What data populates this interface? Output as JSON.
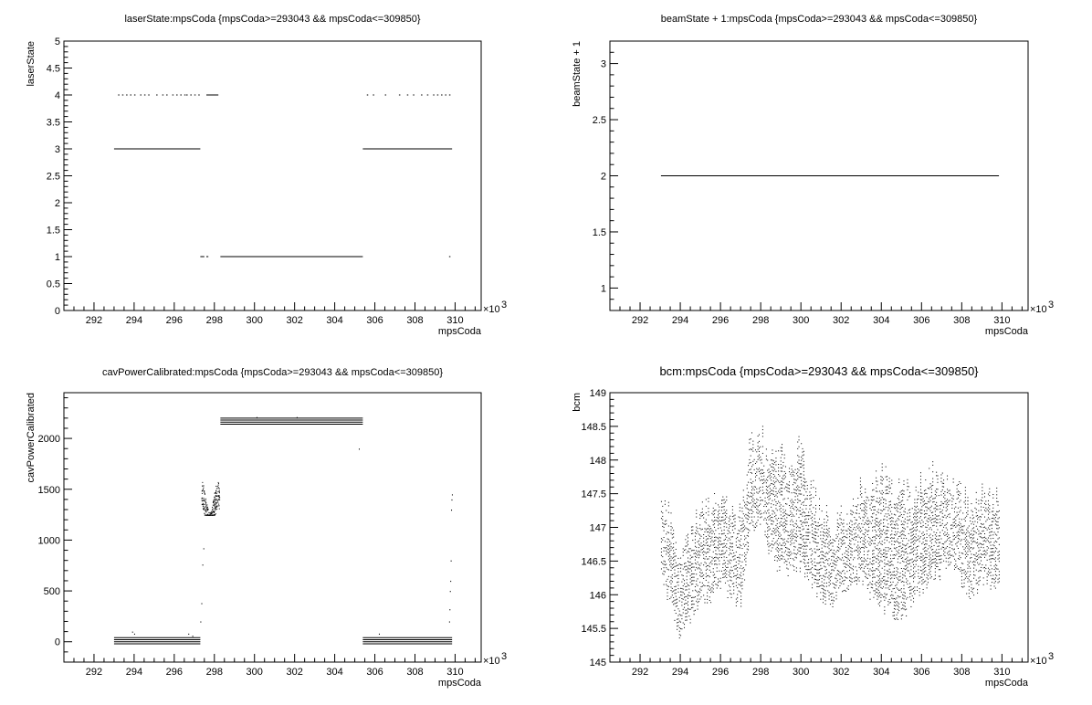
{
  "chart_data": [
    {
      "type": "scatter",
      "title": "laserState:mpsCoda {mpsCoda>=293043 && mpsCoda<=309850}",
      "xlabel": "mpsCoda",
      "ylabel": "laserState",
      "x_exponent": "×10",
      "x_exponent_power": "3",
      "xlim": [
        290.5,
        311.3
      ],
      "ylim": [
        0,
        5
      ],
      "x_ticks": [
        "292",
        "294",
        "296",
        "298",
        "300",
        "302",
        "304",
        "306",
        "308",
        "310"
      ],
      "y_ticks": [
        "0",
        "0.5",
        "1",
        "1.5",
        "2",
        "2.5",
        "3",
        "3.5",
        "4",
        "4.5",
        "5"
      ],
      "segments": [
        {
          "x": [
            293.0,
            297.3
          ],
          "y": 3
        },
        {
          "x": [
            298.3,
            305.4
          ],
          "y": 1
        },
        {
          "x": [
            305.4,
            309.85
          ],
          "y": 3
        },
        {
          "x": [
            297.6,
            298.2
          ],
          "y": 4
        },
        {
          "x": [
            297.3,
            297.5
          ],
          "y": 1
        },
        {
          "x": [
            297.6,
            297.7
          ],
          "y": 1
        }
      ],
      "dots_y4": [
        293.2,
        293.4,
        293.6,
        293.8,
        294.0,
        294.3,
        294.5,
        294.7,
        295.1,
        295.4,
        295.6,
        295.9,
        296.1,
        296.3,
        296.5,
        296.6,
        296.8,
        297.0,
        297.2,
        305.6,
        305.9,
        306.5,
        307.2,
        307.6,
        307.9,
        308.3,
        308.6,
        308.9,
        309.1,
        309.3,
        309.5,
        309.7
      ],
      "dots_y1": [
        309.7
      ]
    },
    {
      "type": "scatter",
      "title": "beamState + 1:mpsCoda {mpsCoda>=293043 && mpsCoda<=309850}",
      "xlabel": "mpsCoda",
      "ylabel": "beamState + 1",
      "x_exponent": "×10",
      "x_exponent_power": "3",
      "xlim": [
        290.5,
        311.3
      ],
      "ylim": [
        0.8,
        3.2
      ],
      "x_ticks": [
        "292",
        "294",
        "296",
        "298",
        "300",
        "302",
        "304",
        "306",
        "308",
        "310"
      ],
      "y_ticks": [
        "1",
        "1.5",
        "2",
        "2.5",
        "3"
      ],
      "y_tick_values": [
        1,
        1.5,
        2,
        2.5,
        3
      ],
      "segments": [
        {
          "x": [
            293.04,
            309.85
          ],
          "y": 2
        }
      ]
    },
    {
      "type": "scatter",
      "title": "cavPowerCalibrated:mpsCoda {mpsCoda>=293043 && mpsCoda<=309850}",
      "xlabel": "mpsCoda",
      "ylabel": "cavPowerCalibrated",
      "x_exponent": "×10",
      "x_exponent_power": "3",
      "xlim": [
        290.5,
        311.3
      ],
      "ylim": [
        -200,
        2450
      ],
      "x_ticks": [
        "292",
        "294",
        "296",
        "298",
        "300",
        "302",
        "304",
        "306",
        "308",
        "310"
      ],
      "y_ticks": [
        "0",
        "500",
        "1000",
        "1500",
        "2000"
      ],
      "y_tick_values": [
        0,
        500,
        1000,
        1500,
        2000
      ],
      "bands": [
        {
          "x": [
            293.0,
            297.3
          ],
          "ys": [
            40,
            20,
            0,
            -20
          ]
        },
        {
          "x": [
            298.3,
            305.4
          ],
          "ys": [
            2200,
            2180,
            2160,
            2140
          ]
        },
        {
          "x": [
            305.4,
            309.85
          ],
          "ys": [
            40,
            20,
            0,
            -20
          ]
        }
      ],
      "cluster": {
        "x": [
          297.35,
          298.25
        ],
        "y": [
          1250,
          1680
        ]
      },
      "rise": [
        {
          "x": 297.3,
          "y": 200
        },
        {
          "x": 297.35,
          "y": 380
        },
        {
          "x": 297.4,
          "y": 760
        },
        {
          "x": 297.45,
          "y": 920
        }
      ],
      "isolated": [
        {
          "x": 293.9,
          "y": 100
        },
        {
          "x": 294.0,
          "y": 80
        },
        {
          "x": 296.7,
          "y": 80
        },
        {
          "x": 296.9,
          "y": 60
        },
        {
          "x": 305.2,
          "y": 1900
        },
        {
          "x": 306.2,
          "y": 80
        },
        {
          "x": 302.1,
          "y": 2210
        },
        {
          "x": 300.1,
          "y": 2210
        }
      ],
      "tail": [
        {
          "x": 309.7,
          "y": 200
        },
        {
          "x": 309.72,
          "y": 320
        },
        {
          "x": 309.74,
          "y": 500
        },
        {
          "x": 309.76,
          "y": 600
        },
        {
          "x": 309.78,
          "y": 800
        },
        {
          "x": 309.8,
          "y": 1300
        },
        {
          "x": 309.82,
          "y": 1400
        },
        {
          "x": 309.84,
          "y": 1450
        }
      ]
    },
    {
      "type": "scatter",
      "title": "bcm:mpsCoda {mpsCoda>=293043 && mpsCoda<=309850}",
      "xlabel": "mpsCoda",
      "ylabel": "bcm",
      "x_exponent": "×10",
      "x_exponent_power": "3",
      "xlim": [
        290.5,
        311.3
      ],
      "ylim": [
        145,
        149
      ],
      "x_ticks": [
        "292",
        "294",
        "296",
        "298",
        "300",
        "302",
        "304",
        "306",
        "308",
        "310"
      ],
      "y_ticks": [
        "145",
        "145.5",
        "146",
        "146.5",
        "147",
        "147.5",
        "148",
        "148.5",
        "149"
      ],
      "y_tick_values": [
        145,
        145.5,
        146,
        146.5,
        147,
        147.5,
        148,
        148.5,
        149
      ],
      "x_range": [
        293.04,
        309.85
      ],
      "envelope_hint": [
        {
          "x": 293.0,
          "lo": 146.4,
          "hi": 147.4
        },
        {
          "x": 293.5,
          "lo": 145.9,
          "hi": 147.1
        },
        {
          "x": 294.0,
          "lo": 145.4,
          "hi": 146.6
        },
        {
          "x": 294.5,
          "lo": 145.7,
          "hi": 146.9
        },
        {
          "x": 295.0,
          "lo": 145.9,
          "hi": 147.2
        },
        {
          "x": 295.5,
          "lo": 146.0,
          "hi": 147.3
        },
        {
          "x": 296.0,
          "lo": 146.2,
          "hi": 147.4
        },
        {
          "x": 296.5,
          "lo": 146.0,
          "hi": 147.2
        },
        {
          "x": 297.0,
          "lo": 145.9,
          "hi": 147.2
        },
        {
          "x": 297.5,
          "lo": 147.0,
          "hi": 148.3
        },
        {
          "x": 298.0,
          "lo": 147.1,
          "hi": 148.3
        },
        {
          "x": 298.5,
          "lo": 146.6,
          "hi": 148.0
        },
        {
          "x": 299.0,
          "lo": 146.4,
          "hi": 148.0
        },
        {
          "x": 299.5,
          "lo": 146.4,
          "hi": 147.8
        },
        {
          "x": 300.0,
          "lo": 146.5,
          "hi": 148.3
        },
        {
          "x": 300.5,
          "lo": 146.2,
          "hi": 147.5
        },
        {
          "x": 301.0,
          "lo": 146.0,
          "hi": 147.2
        },
        {
          "x": 301.5,
          "lo": 145.9,
          "hi": 147.0
        },
        {
          "x": 302.0,
          "lo": 146.1,
          "hi": 147.2
        },
        {
          "x": 302.5,
          "lo": 146.2,
          "hi": 147.4
        },
        {
          "x": 303.0,
          "lo": 146.3,
          "hi": 147.6
        },
        {
          "x": 303.5,
          "lo": 146.0,
          "hi": 147.6
        },
        {
          "x": 304.0,
          "lo": 145.9,
          "hi": 147.8
        },
        {
          "x": 304.5,
          "lo": 145.8,
          "hi": 147.6
        },
        {
          "x": 305.0,
          "lo": 145.6,
          "hi": 147.5
        },
        {
          "x": 305.5,
          "lo": 146.0,
          "hi": 147.4
        },
        {
          "x": 306.0,
          "lo": 146.1,
          "hi": 147.6
        },
        {
          "x": 306.5,
          "lo": 146.3,
          "hi": 147.8
        },
        {
          "x": 307.0,
          "lo": 146.4,
          "hi": 147.6
        },
        {
          "x": 307.5,
          "lo": 146.5,
          "hi": 147.6
        },
        {
          "x": 308.0,
          "lo": 146.2,
          "hi": 147.5
        },
        {
          "x": 308.5,
          "lo": 146.0,
          "hi": 147.3
        },
        {
          "x": 309.0,
          "lo": 146.3,
          "hi": 147.6
        },
        {
          "x": 309.5,
          "lo": 146.2,
          "hi": 147.4
        },
        {
          "x": 309.85,
          "lo": 146.3,
          "hi": 147.7
        }
      ]
    }
  ]
}
